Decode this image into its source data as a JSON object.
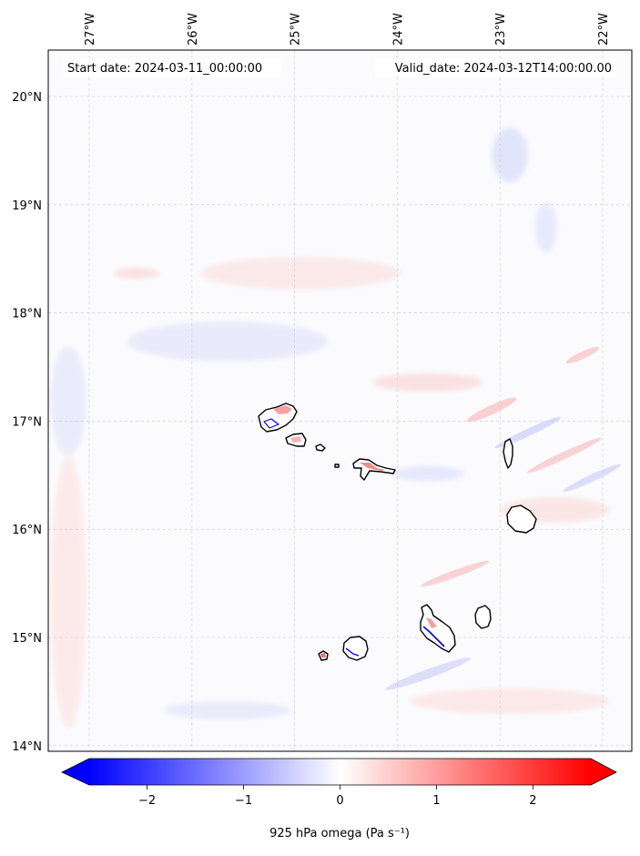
{
  "map": {
    "info": {
      "start_date": "Start date: 2024-03-11_00:00:00",
      "valid_date": "Valid_date: 2024-03-12T14:00:00.00"
    },
    "lon_labels": [
      {
        "lon": -27,
        "text": "27°W"
      },
      {
        "lon": -26,
        "text": "26°W"
      },
      {
        "lon": -25,
        "text": "25°W"
      },
      {
        "lon": -24,
        "text": "24°W"
      },
      {
        "lon": -23,
        "text": "23°W"
      },
      {
        "lon": -22,
        "text": "22°W"
      }
    ],
    "lat_labels": [
      {
        "lat": 20,
        "text": "20°N"
      },
      {
        "lat": 19,
        "text": "19°N"
      },
      {
        "lat": 18,
        "text": "18°N"
      },
      {
        "lat": 17,
        "text": "17°N"
      },
      {
        "lat": 16,
        "text": "16°N"
      },
      {
        "lat": 15,
        "text": "15°N"
      },
      {
        "lat": 14,
        "text": "14°N"
      }
    ],
    "islands": [
      "santo-antao",
      "sao-vicente",
      "santa-luzia",
      "branco",
      "sao-nicolau",
      "sal",
      "boa-vista",
      "brava",
      "fogo",
      "santiago",
      "maio"
    ],
    "field_colors": {
      "negative": "#0000ff",
      "neutral": "#ffffff",
      "positive": "#ff0000"
    }
  },
  "colorbar": {
    "label": "925 hPa omega (Pa s⁻¹)",
    "range": [
      -2.6,
      2.6
    ],
    "extend": "both",
    "ticks": [
      {
        "value": -2,
        "text": "−2"
      },
      {
        "value": -1,
        "text": "−1"
      },
      {
        "value": 0,
        "text": "0"
      },
      {
        "value": 1,
        "text": "1"
      },
      {
        "value": 2,
        "text": "2"
      }
    ]
  }
}
